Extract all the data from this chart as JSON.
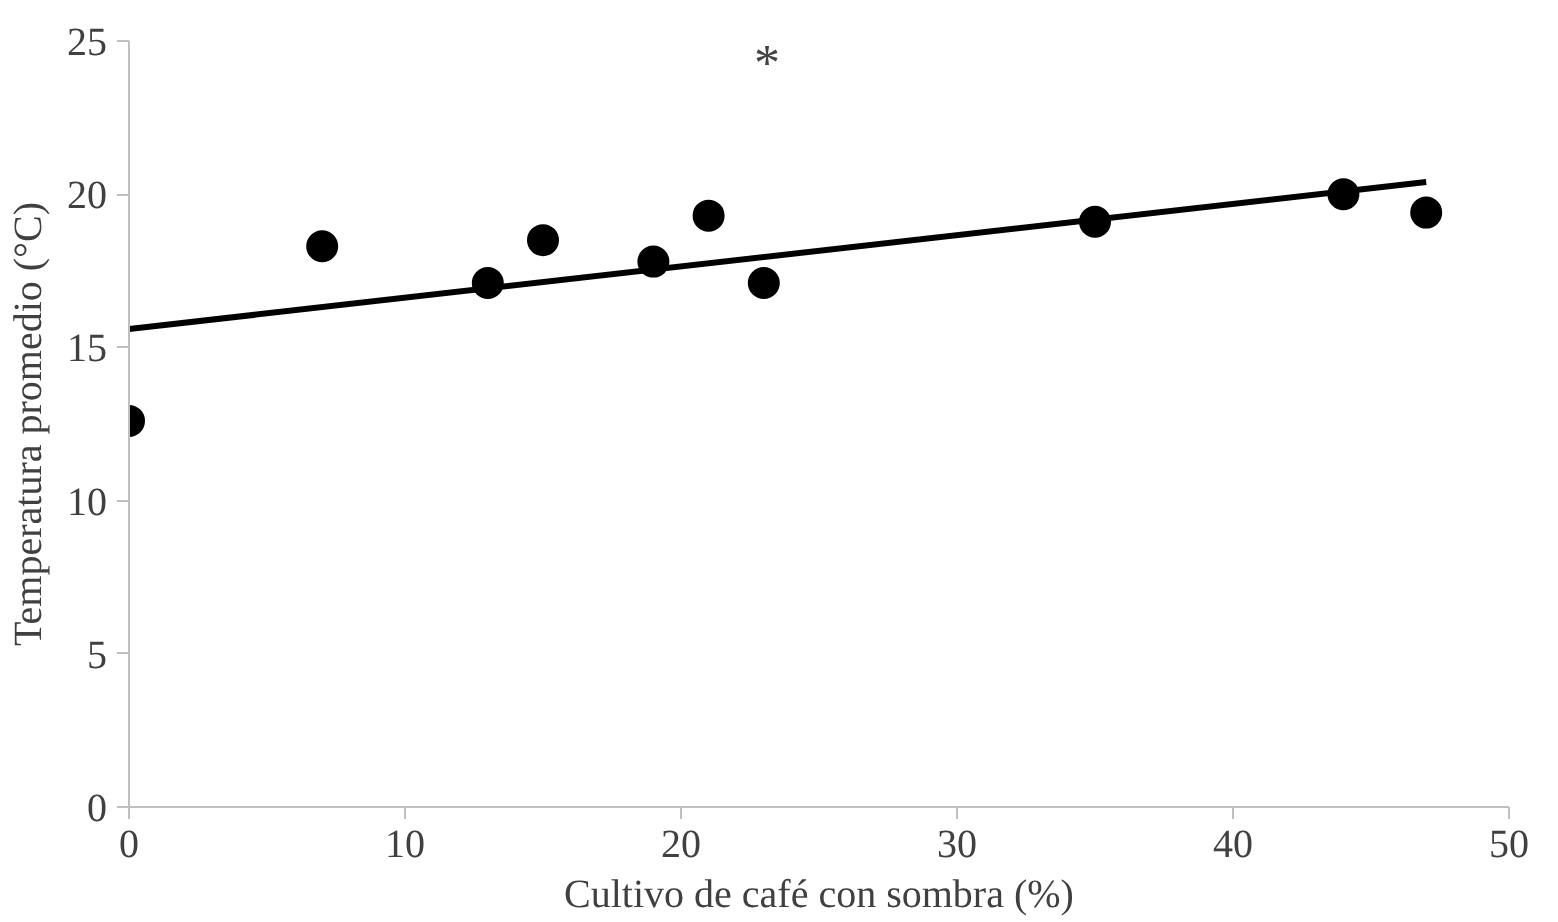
{
  "chart_data": {
    "type": "scatter",
    "xlabel": "Cultivo de café con sombra (%)",
    "ylabel": "Temperatura promedio (°C)",
    "xlim": [
      0,
      50
    ],
    "xticks": [
      0,
      10,
      20,
      30,
      40,
      50
    ],
    "ylim": [
      0,
      25
    ],
    "yticks": [
      0,
      5,
      10,
      15,
      20,
      25
    ],
    "grid": false,
    "series": [
      {
        "marker": "circle",
        "color": "#000000",
        "x": [
          0,
          7,
          13,
          15,
          19,
          21,
          23,
          35,
          44,
          47
        ],
        "values": [
          12.6,
          18.3,
          17.1,
          18.5,
          17.8,
          19.3,
          17.1,
          19.1,
          20.0,
          19.4
        ]
      },
      {
        "type": "line",
        "color": "#000000",
        "line_style": "solid",
        "x": [
          0,
          47
        ],
        "values": [
          15.6,
          20.4
        ]
      }
    ],
    "annotations": [
      "*"
    ]
  }
}
